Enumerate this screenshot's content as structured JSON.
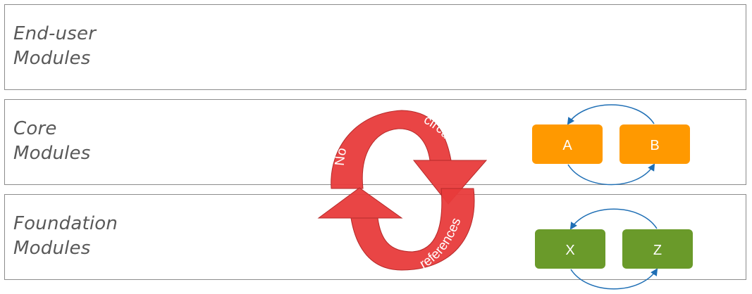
{
  "layers": [
    {
      "line1": "End-user",
      "line2": "Modules"
    },
    {
      "line1": "Core",
      "line2": "Modules"
    },
    {
      "line1": "Foundation",
      "line2": "Modules"
    }
  ],
  "cycle_arrows": {
    "words": [
      "No",
      "circular",
      "references"
    ],
    "color": "#e83b3b"
  },
  "core_modules": {
    "nodes": [
      "A",
      "B"
    ],
    "color": "#ff9900"
  },
  "foundation_modules": {
    "nodes": [
      "X",
      "Z"
    ],
    "color": "#6a9a2a"
  },
  "connector_color": "#1f6fb5"
}
